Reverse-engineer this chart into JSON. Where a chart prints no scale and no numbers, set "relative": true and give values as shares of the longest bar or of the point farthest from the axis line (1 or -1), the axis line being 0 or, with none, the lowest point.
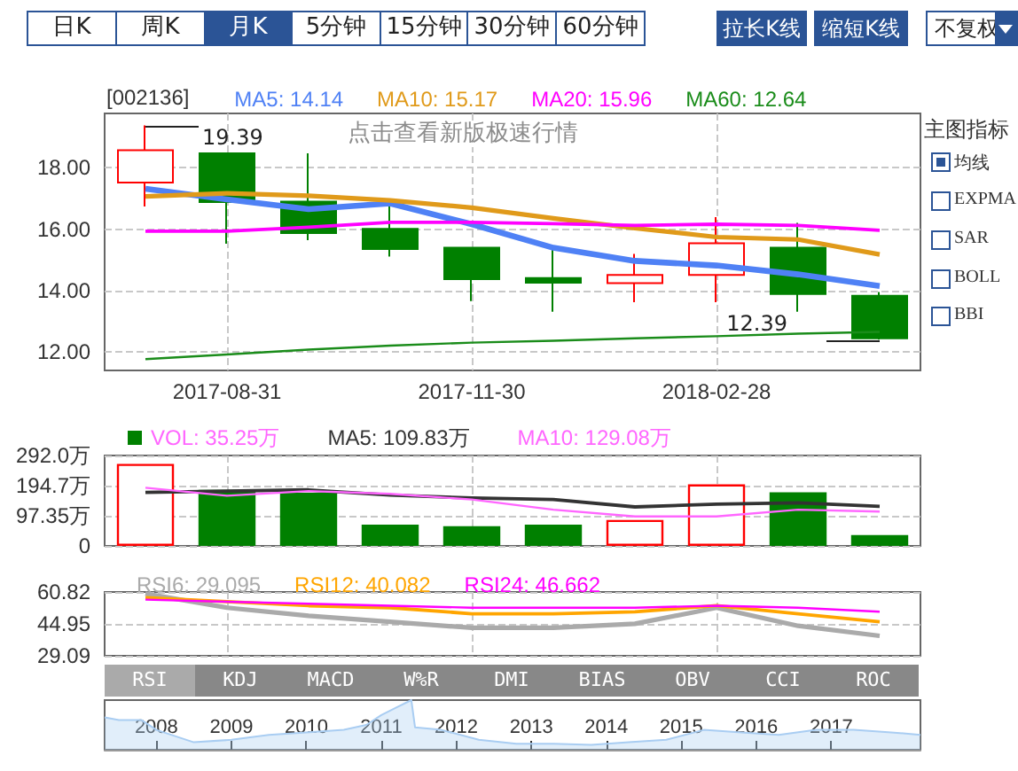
{
  "chart_data": [
    {
      "type": "other",
      "annotations": [
        "日K",
        "周K",
        "月K",
        "5分钟",
        "15分钟",
        "30分钟",
        "60分钟",
        "拉长K线",
        "缩短K线",
        "不复权"
      ]
    },
    {
      "type": "candlestick",
      "title": "[002136]",
      "categories": [
        null,
        "2017-08-31",
        null,
        null,
        "2017-11-30",
        null,
        null,
        "2018-02-28",
        null,
        null
      ],
      "ohlc": [
        [
          17.52,
          19.39,
          16.74,
          18.58
        ],
        [
          18.48,
          18.48,
          15.52,
          16.88
        ],
        [
          16.9,
          18.48,
          15.64,
          15.87
        ],
        [
          16.01,
          16.8,
          15.1,
          15.35
        ],
        [
          15.39,
          15.39,
          13.65,
          14.36
        ],
        [
          14.4,
          15.45,
          13.3,
          14.25
        ],
        [
          14.23,
          15.19,
          13.61,
          14.5
        ],
        [
          14.5,
          16.39,
          13.61,
          15.54
        ],
        [
          15.39,
          16.2,
          13.3,
          13.88
        ],
        [
          13.82,
          13.94,
          12.39,
          12.43
        ]
      ],
      "colors": [
        "#ff0000",
        "#008000",
        "#008000",
        "#008000",
        "#008000",
        "#008000",
        "#ff0000",
        "#ff0000",
        "#008000",
        "#008000"
      ],
      "series": [
        {
          "type": "line",
          "name": "MA5: 14.14",
          "color": "#4f81f5",
          "values": [
            17.32,
            16.97,
            16.65,
            16.84,
            16.16,
            15.39,
            14.96,
            14.81,
            14.52,
            14.14
          ]
        },
        {
          "type": "line",
          "name": "MA10: 15.17",
          "color": "#e09a1a",
          "values": [
            17.07,
            17.17,
            17.09,
            16.94,
            16.7,
            16.35,
            16.03,
            15.74,
            15.66,
            15.17
          ]
        },
        {
          "type": "line",
          "name": "MA20: 15.96",
          "color": "#ff00ff",
          "values": [
            15.93,
            15.93,
            16.06,
            16.22,
            16.22,
            16.18,
            16.12,
            16.16,
            16.12,
            15.96
          ]
        },
        {
          "type": "line",
          "name": "MA60: 12.64",
          "color": "#1a8c1a",
          "values": [
            11.75,
            11.9,
            12.06,
            12.19,
            12.29,
            12.35,
            12.43,
            12.5,
            12.58,
            12.64
          ]
        }
      ],
      "ylim": [
        11.38,
        19.78
      ],
      "yticks": [
        {
          "value": 12,
          "label": "12.00"
        },
        {
          "value": 14,
          "label": "14.00"
        },
        {
          "value": 16,
          "label": "16.00"
        },
        {
          "value": 18,
          "label": "18.00"
        }
      ],
      "grid": true,
      "legend": "top left",
      "marker": "none",
      "annotations": [
        "19.39",
        "12.39",
        "点击查看新版极速行情"
      ]
    },
    {
      "type": "other",
      "title": "主图指标",
      "annotations": [
        "均线",
        "EXPMA",
        "SAR",
        "BOLL",
        "BBI"
      ]
    },
    {
      "type": "bar",
      "categories": [
        null,
        "2017-08-31",
        null,
        null,
        "2017-11-30",
        null,
        null,
        "2018-02-28",
        null,
        null
      ],
      "series": [
        {
          "type": "bar",
          "name": "VOL: 35.25万",
          "colors": [
            "#ff0000",
            "#008000",
            "#008000",
            "#008000",
            "#008000",
            "#008000",
            "#ff0000",
            "#ff0000",
            "#008000",
            "#008000"
          ],
          "values": [
            265,
            181,
            172,
            69,
            64,
            69,
            84,
            199,
            173,
            35.25
          ]
        },
        {
          "type": "line",
          "name": "MA5: 109.83万",
          "color": "#333333",
          "values": [
            173,
            177,
            181,
            164,
            155,
            150,
            126,
            135,
            139,
            128
          ]
        },
        {
          "type": "line",
          "name": "MA10: 129.08万",
          "color": "#ff66ff",
          "values": [
            188,
            162,
            177,
            168,
            150,
            117,
            95,
            95,
            117,
            111
          ]
        }
      ],
      "ylim": [
        0,
        292
      ],
      "yticks": [
        0,
        {
          "value": 97.35,
          "label": "97.35万"
        },
        {
          "value": 194.7,
          "label": "194.7万"
        },
        {
          "value": 292,
          "label": "292.0万"
        }
      ],
      "grid": true,
      "legend": "top left",
      "marker": "none",
      "tick_labels": "y"
    },
    {
      "type": "line",
      "categories": [
        null,
        "2017-08-31",
        null,
        null,
        "2017-11-30",
        null,
        null,
        "2018-02-28",
        null,
        null
      ],
      "series": [
        {
          "name": "RSI6: 29.095",
          "color": "#aaaaaa",
          "values": [
            60,
            53,
            49,
            46,
            43,
            43,
            45,
            53,
            44,
            39
          ]
        },
        {
          "name": "RSI12: 40.082",
          "color": "#ffa500",
          "values": [
            58,
            56,
            54,
            53,
            50,
            50,
            51,
            54,
            50,
            46
          ]
        },
        {
          "name": "RSI24: 46.662",
          "color": "#ff00ff",
          "values": [
            57,
            56,
            55,
            54,
            53,
            53,
            53,
            54,
            53,
            51
          ]
        }
      ],
      "ylim": [
        29.09,
        60.82
      ],
      "yticks": [
        29.09,
        44.95,
        60.82
      ],
      "grid": true,
      "legend": "top left",
      "marker": "none",
      "tick_labels": "y"
    },
    {
      "type": "other",
      "annotations": [
        "RSI",
        "KDJ",
        "MACD",
        "W%R",
        "DMI",
        "BIAS",
        "OBV",
        "CCI",
        "ROC"
      ]
    },
    {
      "type": "area",
      "relative": true,
      "marker": "none",
      "xlim": [
        2007.31,
        2018.19
      ],
      "xticks": [
        2008,
        2009,
        2010,
        2011,
        2012,
        2013,
        2014,
        2015,
        2016,
        2017
      ],
      "series": [
        {
          "color": "#a9cdf2",
          "x": [
            2007.31,
            2007.5,
            2007.8,
            2008.0,
            2008.5,
            2009.0,
            2009.5,
            2010.0,
            2010.5,
            2010.8,
            2011.0,
            2011.2,
            2011.4,
            2011.45,
            2011.8,
            2012.3,
            2012.8,
            2013.3,
            2013.8,
            2014.3,
            2014.8,
            2015.3,
            2015.8,
            2016.3,
            2016.8,
            2017.3,
            2017.8,
            2018.19
          ],
          "values": [
            0.65,
            0.6,
            0.6,
            0.4,
            0.15,
            0.2,
            0.3,
            0.35,
            0.4,
            0.5,
            0.7,
            0.85,
            1,
            0.45,
            0.4,
            0.2,
            0.12,
            0.12,
            0.1,
            0.15,
            0.2,
            0.4,
            0.35,
            0.3,
            0.4,
            0.4,
            0.35,
            0.3
          ]
        }
      ]
    }
  ]
}
